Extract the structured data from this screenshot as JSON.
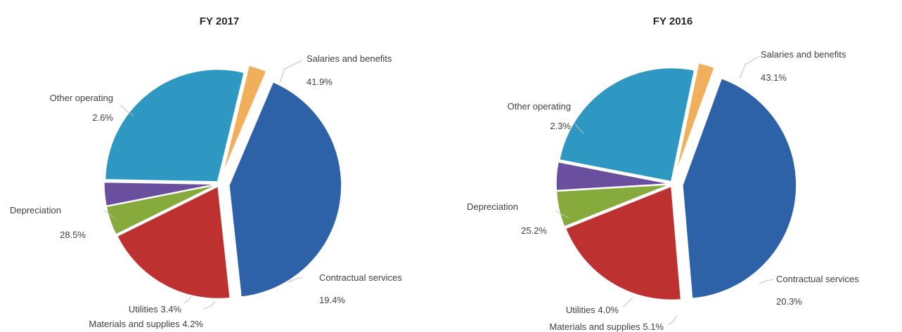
{
  "chart_data": [
    {
      "type": "pie",
      "title": "FY 2017",
      "slices": [
        {
          "label": "Salaries and benefits",
          "value": 41.9,
          "value_label": "41.9%",
          "color": "#2E62A8"
        },
        {
          "label": "Contractual services",
          "value": 19.4,
          "value_label": "19.4%",
          "color": "#BD3230"
        },
        {
          "label": "Materials and supplies",
          "value": 4.2,
          "value_label": "4.2%",
          "color": "#86AA3C"
        },
        {
          "label": "Utilities",
          "value": 3.4,
          "value_label": "3.4%",
          "color": "#6A4F9F"
        },
        {
          "label": "Depreciation",
          "value": 28.5,
          "value_label": "28.5%",
          "color": "#2E98C3"
        },
        {
          "label": "Other operating",
          "value": 2.6,
          "value_label": "2.6%",
          "color": "#F2AF5B"
        }
      ]
    },
    {
      "type": "pie",
      "title": "FY 2016",
      "slices": [
        {
          "label": "Salaries and benefits",
          "value": 43.1,
          "value_label": "43.1%",
          "color": "#2E62A8"
        },
        {
          "label": "Contractual services",
          "value": 20.3,
          "value_label": "20.3%",
          "color": "#BD3230"
        },
        {
          "label": "Materials and supplies",
          "value": 5.1,
          "value_label": "5.1%",
          "color": "#86AA3C"
        },
        {
          "label": "Utilities",
          "value": 4.0,
          "value_label": "4.0%",
          "color": "#6A4F9F"
        },
        {
          "label": "Depreciation",
          "value": 25.2,
          "value_label": "25.2%",
          "color": "#2E98C3"
        },
        {
          "label": "Other operating",
          "value": 2.3,
          "value_label": "2.3%",
          "color": "#F2AF5B"
        }
      ]
    }
  ]
}
